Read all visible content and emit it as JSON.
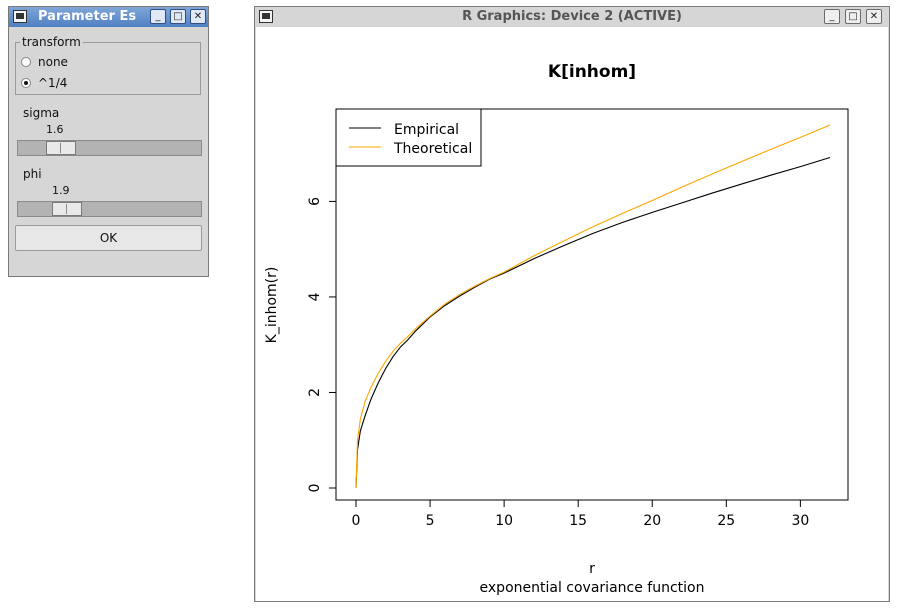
{
  "param_window": {
    "title": "Parameter Es",
    "transform": {
      "legend": "transform",
      "options": [
        "none",
        "^1/4"
      ],
      "selected_index": 1
    },
    "sigma": {
      "label": "sigma",
      "value": "1.6",
      "fraction": 0.18
    },
    "phi": {
      "label": "phi",
      "value": "1.9",
      "fraction": 0.22
    },
    "ok_label": "OK"
  },
  "graphics_window": {
    "title": "R Graphics: Device 2 (ACTIVE)"
  },
  "chart_data": {
    "type": "line",
    "title": "K[inhom]",
    "xlabel": "r",
    "ylabel": "K_inhom(r)",
    "subtitle": "exponential covariance function",
    "xlim": [
      0,
      32
    ],
    "ylim": [
      0,
      7.6
    ],
    "xticks": [
      0,
      5,
      10,
      15,
      20,
      25,
      30
    ],
    "yticks": [
      0,
      2,
      4,
      6
    ],
    "legend_position": "top-left",
    "series": [
      {
        "name": "Empirical",
        "color": "#000000",
        "x": [
          0,
          0.1,
          0.3,
          0.6,
          1,
          1.5,
          2,
          2.5,
          3,
          3.5,
          4,
          5,
          6,
          7,
          8,
          9,
          10,
          12,
          14,
          16,
          18,
          20,
          22,
          24,
          26,
          28,
          30,
          32
        ],
        "y": [
          0,
          0.8,
          1.2,
          1.5,
          1.85,
          2.2,
          2.5,
          2.75,
          2.95,
          3.1,
          3.28,
          3.58,
          3.82,
          4.02,
          4.2,
          4.37,
          4.5,
          4.8,
          5.07,
          5.33,
          5.56,
          5.77,
          5.97,
          6.17,
          6.36,
          6.55,
          6.73,
          6.92
        ]
      },
      {
        "name": "Theoretical",
        "color": "#ffa500",
        "x": [
          0,
          0.1,
          0.3,
          0.6,
          1,
          1.5,
          2,
          2.5,
          3,
          3.5,
          4,
          5,
          6,
          7,
          8,
          9,
          10,
          12,
          14,
          16,
          18,
          20,
          22,
          24,
          26,
          28,
          30,
          32
        ],
        "y": [
          0,
          1.0,
          1.45,
          1.8,
          2.1,
          2.4,
          2.65,
          2.86,
          3.03,
          3.17,
          3.33,
          3.6,
          3.85,
          4.05,
          4.22,
          4.38,
          4.52,
          4.86,
          5.17,
          5.47,
          5.75,
          6.02,
          6.3,
          6.57,
          6.83,
          7.09,
          7.34,
          7.6
        ]
      }
    ]
  }
}
